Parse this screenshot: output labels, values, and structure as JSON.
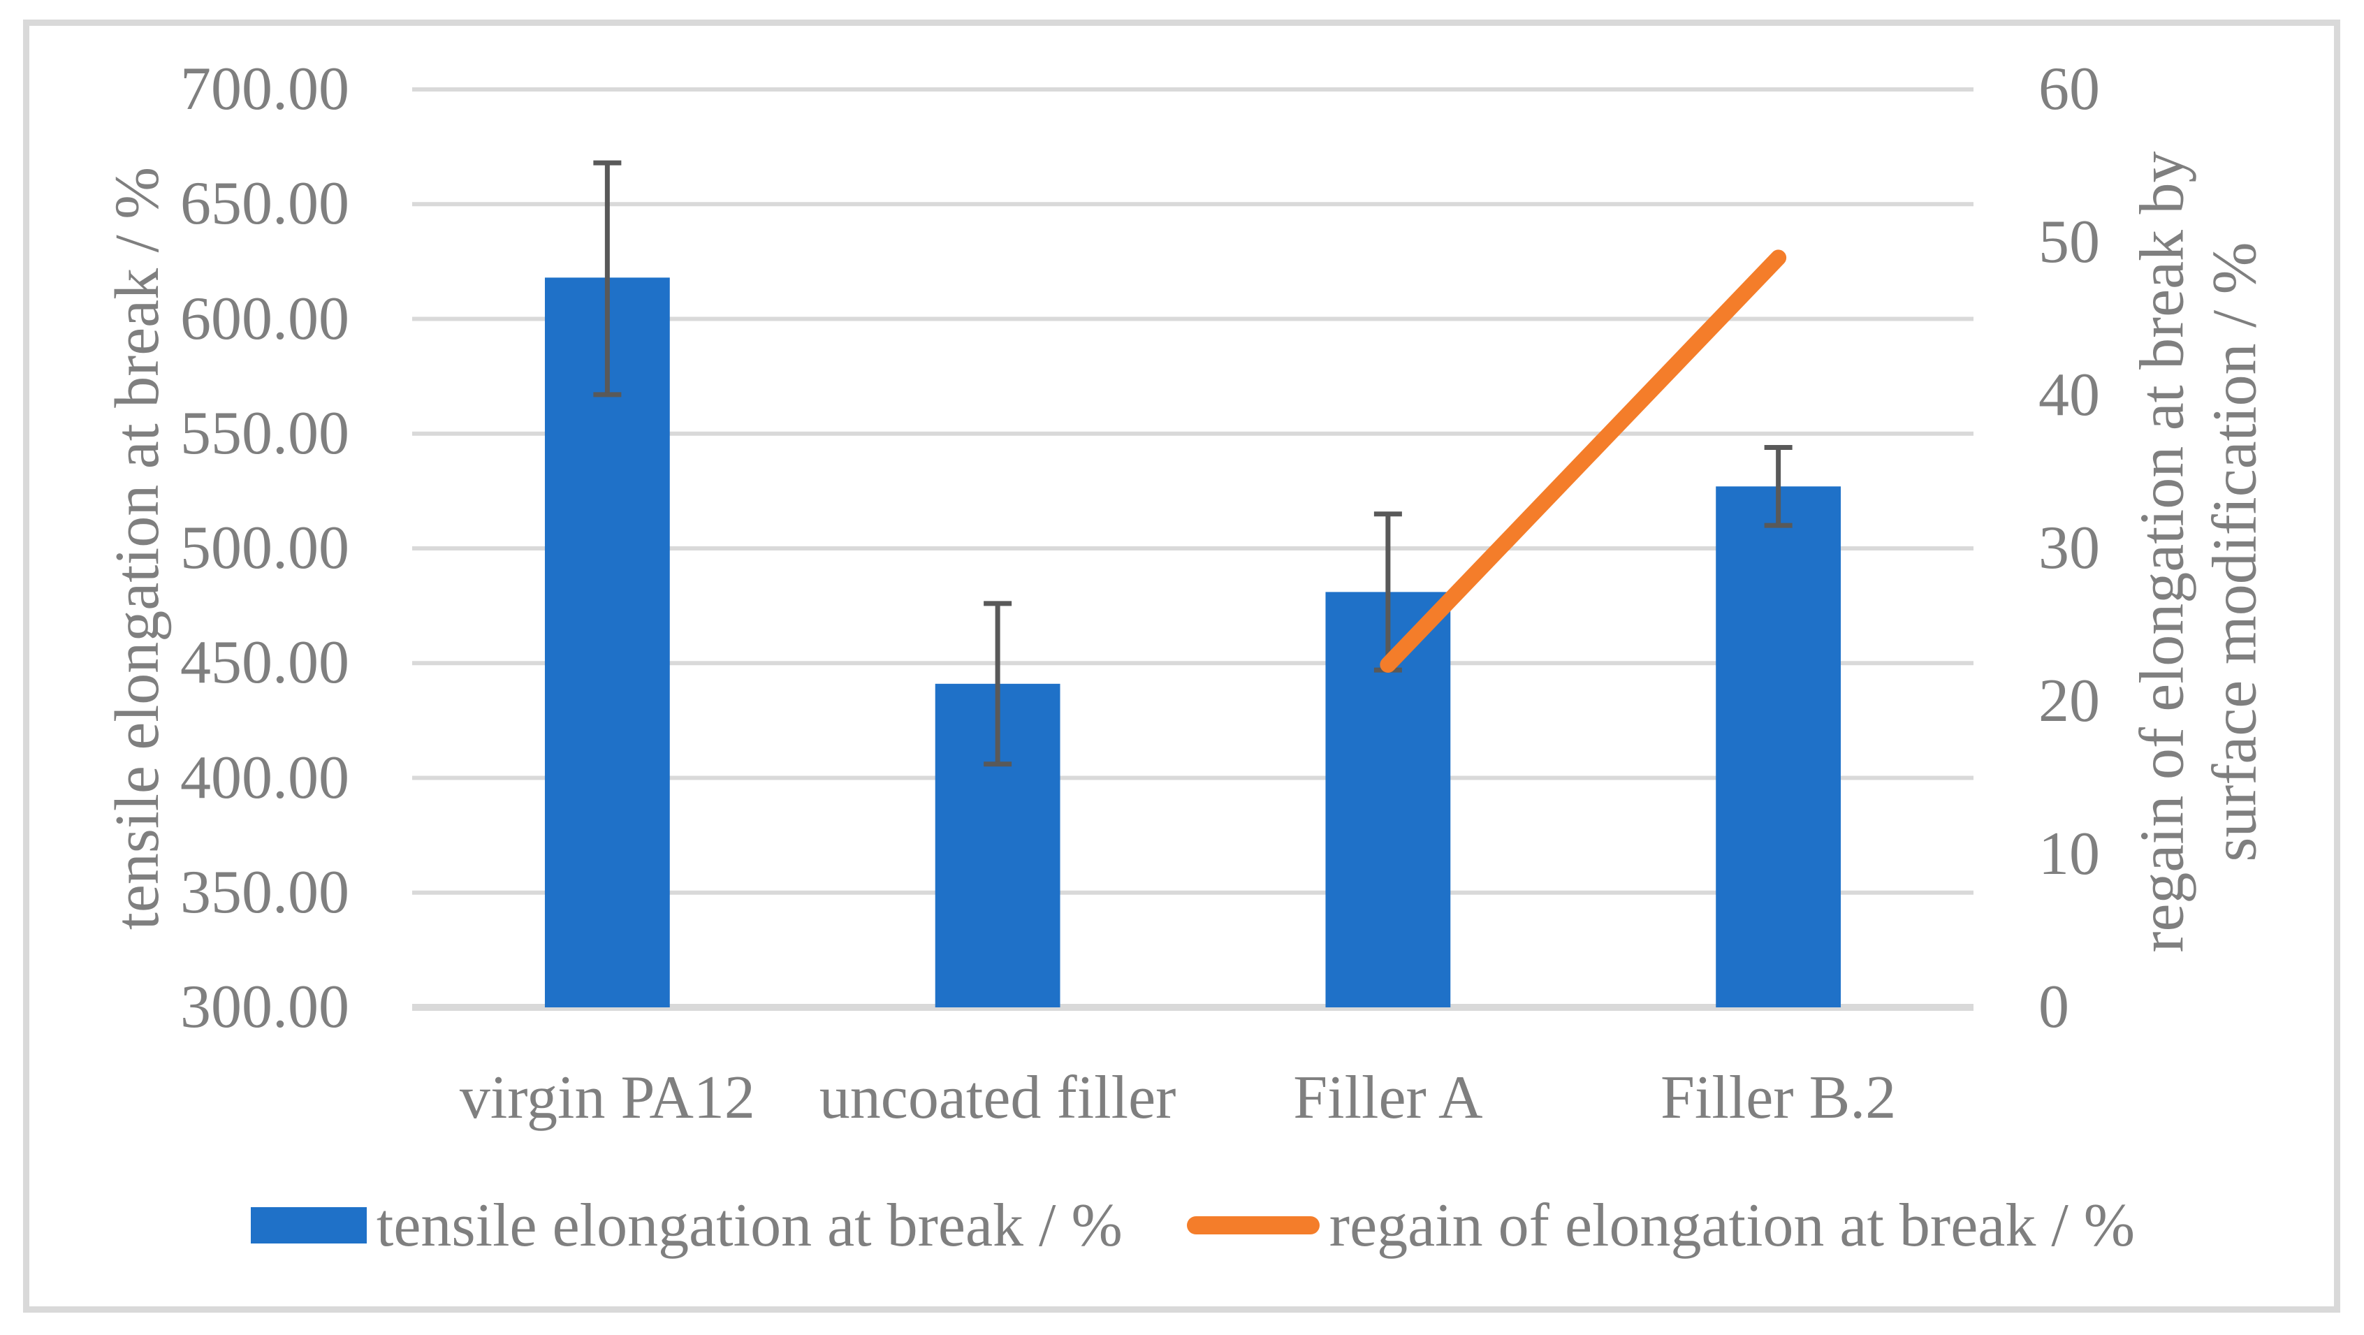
{
  "figure": {
    "background": "#FFFFFF",
    "border_color": "#D9D9D9",
    "text_color": "#7F7F7F"
  },
  "chart_data": {
    "type": "bar",
    "subtype": "bar-with-secondary-line",
    "title": "",
    "categories": [
      "virgin PA12",
      "uncoated filler",
      "Filler A",
      "Filler B.2"
    ],
    "series": [
      {
        "name": "tensile elongation at break / %",
        "type": "bar",
        "axis": "left",
        "color": "#1F71C8",
        "values": [
          618,
          441,
          481,
          527
        ],
        "error_bars": {
          "plus": [
            50,
            35,
            34,
            17
          ],
          "minus": [
            51,
            35,
            34,
            17
          ],
          "color": "#595959"
        }
      },
      {
        "name": "regain of elongation at break / %",
        "type": "line",
        "axis": "right",
        "color": "#F47D2A",
        "values": [
          null,
          null,
          22.4,
          49.0
        ]
      }
    ],
    "left_axis": {
      "title": "tensile elongation at break / %",
      "min": 300,
      "max": 700,
      "step": 50,
      "tick_labels": [
        "300.00",
        "350.00",
        "400.00",
        "450.00",
        "500.00",
        "550.00",
        "600.00",
        "650.00",
        "700.00"
      ]
    },
    "right_axis": {
      "title_line1": "regain of elongation at break by",
      "title_line2": "surface modification / %",
      "min": 0,
      "max": 60,
      "step": 10,
      "tick_labels": [
        "0",
        "10",
        "20",
        "30",
        "40",
        "50",
        "60"
      ]
    },
    "grid": {
      "horizontal_gridlines": true,
      "vertical_gridlines": false,
      "gridline_color": "#D9D9D9",
      "axis_line_color": "#D9D9D9"
    },
    "legend": {
      "position": "bottom",
      "items": [
        {
          "label": "tensile elongation at break / %",
          "swatch": "bar",
          "color": "#1F71C8"
        },
        {
          "label": "regain of elongation at break / %",
          "swatch": "line",
          "color": "#F47D2A"
        }
      ]
    }
  }
}
